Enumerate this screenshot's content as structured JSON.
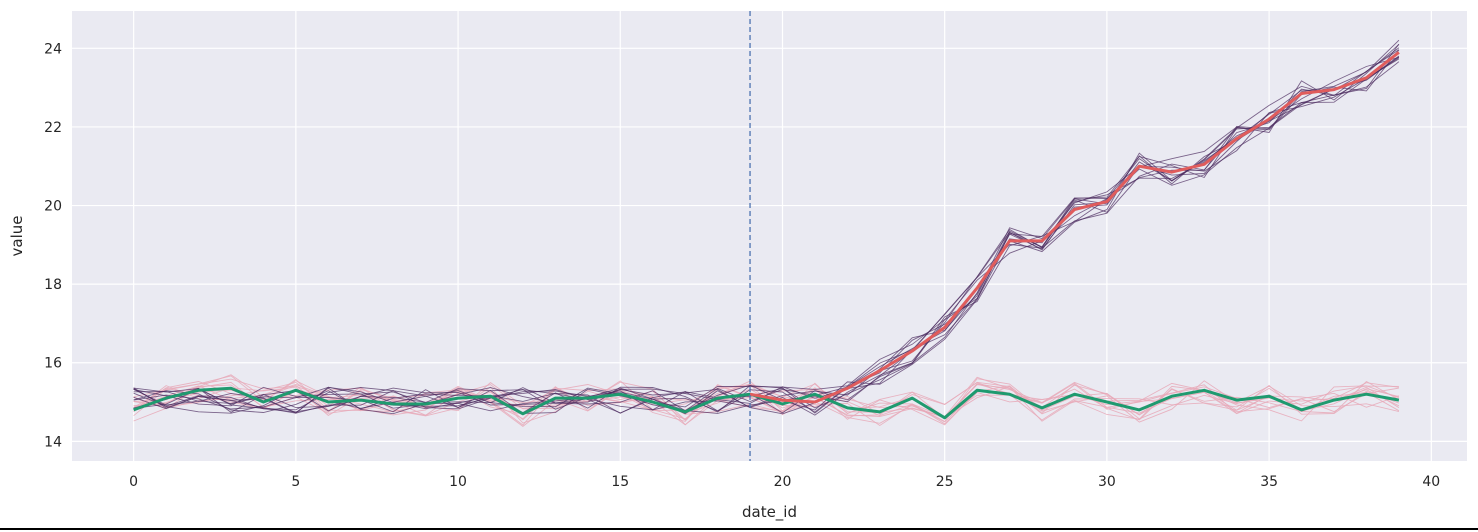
{
  "chart_data": {
    "type": "line",
    "xlabel": "date_id",
    "ylabel": "value",
    "xlim": [
      -1.9,
      41.1
    ],
    "ylim": [
      13.5,
      24.95
    ],
    "xticks": [
      0,
      5,
      10,
      15,
      20,
      25,
      30,
      35,
      40
    ],
    "yticks": [
      14,
      16,
      18,
      20,
      22,
      24
    ],
    "grid": true,
    "legend": "none",
    "background": "#eaeaf2",
    "vline": {
      "x": 19,
      "style": "dashed",
      "color": "#4c72b0"
    },
    "series": [
      {
        "role": "mean-rising",
        "color": "#e05c5c",
        "x": [
          19,
          20,
          21,
          22,
          23,
          24,
          25,
          26,
          27,
          28,
          29,
          30,
          31,
          32,
          33,
          34,
          35,
          36,
          37,
          38,
          39
        ],
        "values": [
          15.2,
          15.05,
          15.0,
          15.35,
          15.8,
          16.3,
          16.9,
          17.9,
          19.1,
          19.1,
          19.9,
          20.1,
          21.0,
          20.85,
          21.05,
          21.7,
          22.2,
          22.85,
          22.95,
          23.25,
          23.9
        ]
      },
      {
        "role": "mean-flat",
        "color": "#1f9a6f",
        "x": [
          0,
          1,
          2,
          3,
          4,
          5,
          6,
          7,
          8,
          9,
          10,
          11,
          12,
          13,
          14,
          15,
          16,
          17,
          18,
          19,
          20,
          21,
          22,
          23,
          24,
          25,
          26,
          27,
          28,
          29,
          30,
          31,
          32,
          33,
          34,
          35,
          36,
          37,
          38,
          39
        ],
        "values": [
          14.8,
          15.1,
          15.3,
          15.35,
          15.0,
          15.3,
          15.0,
          15.05,
          14.95,
          14.95,
          15.1,
          15.15,
          14.7,
          15.1,
          15.1,
          15.2,
          15.0,
          14.75,
          15.1,
          15.2,
          14.95,
          15.2,
          14.85,
          14.75,
          15.1,
          14.6,
          15.3,
          15.2,
          14.85,
          15.2,
          15.0,
          14.8,
          15.15,
          15.3,
          15.05,
          15.15,
          14.8,
          15.05,
          15.2,
          15.05
        ]
      }
    ],
    "individual_series": {
      "count_rising": 12,
      "count_flat": 12,
      "color_rising": "#4a2a5e",
      "color_flat": "#e8a9b8",
      "x_start": 0,
      "x_end": 39,
      "flat_level": 15.05,
      "noise": 0.35
    }
  }
}
